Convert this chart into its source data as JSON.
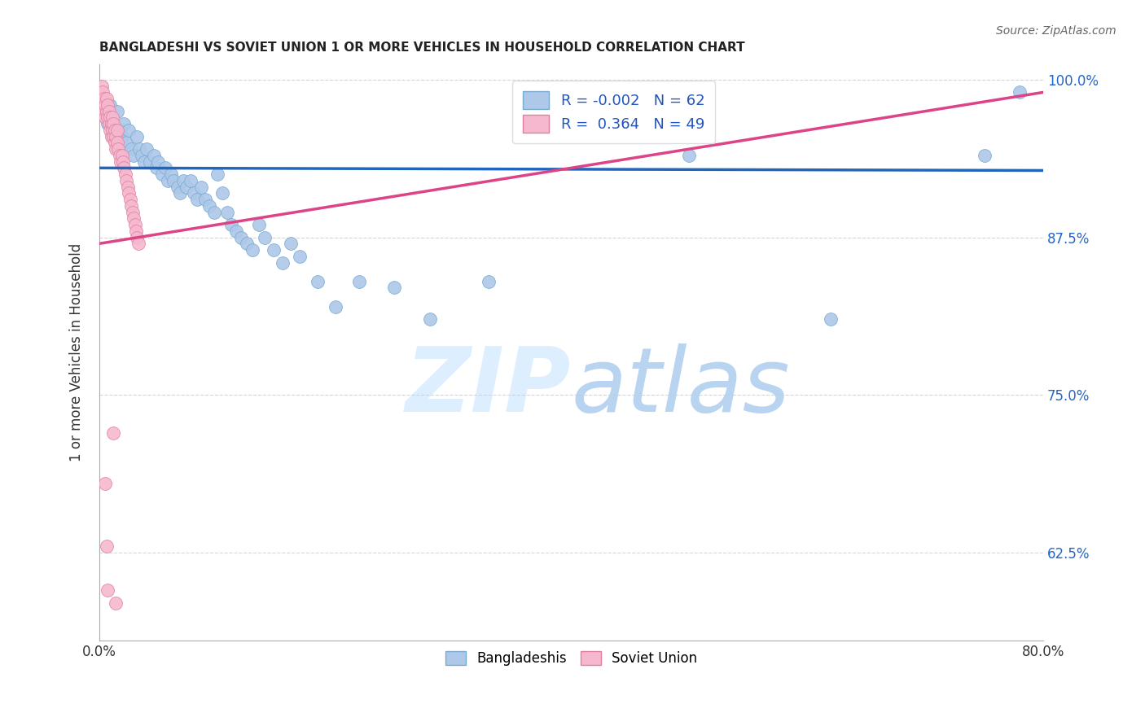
{
  "title": "BANGLADESHI VS SOVIET UNION 1 OR MORE VEHICLES IN HOUSEHOLD CORRELATION CHART",
  "source": "Source: ZipAtlas.com",
  "ylabel": "1 or more Vehicles in Household",
  "xlim": [
    0.0,
    0.8
  ],
  "ylim": [
    0.555,
    1.012
  ],
  "xticks": [
    0.0,
    0.1,
    0.2,
    0.3,
    0.4,
    0.5,
    0.6,
    0.7,
    0.8
  ],
  "xticklabels": [
    "0.0%",
    "",
    "",
    "",
    "",
    "",
    "",
    "",
    "80.0%"
  ],
  "yticks": [
    0.625,
    0.75,
    0.875,
    1.0
  ],
  "yticklabels": [
    "62.5%",
    "75.0%",
    "87.5%",
    "100.0%"
  ],
  "legend_r_blue": "-0.002",
  "legend_n_blue": "62",
  "legend_r_pink": "0.364",
  "legend_n_pink": "49",
  "blue_color": "#adc8e8",
  "pink_color": "#f5b8ce",
  "trend_blue_color": "#2266bb",
  "trend_pink_color": "#dd4488",
  "watermark_color": "#ddeeff",
  "background_color": "#ffffff",
  "grid_color": "#cccccc",
  "blue_x": [
    0.005,
    0.007,
    0.009,
    0.011,
    0.013,
    0.015,
    0.017,
    0.019,
    0.021,
    0.023,
    0.025,
    0.027,
    0.029,
    0.032,
    0.034,
    0.036,
    0.038,
    0.04,
    0.043,
    0.046,
    0.048,
    0.05,
    0.053,
    0.056,
    0.058,
    0.061,
    0.063,
    0.066,
    0.068,
    0.071,
    0.074,
    0.077,
    0.08,
    0.083,
    0.086,
    0.09,
    0.093,
    0.097,
    0.1,
    0.104,
    0.108,
    0.112,
    0.116,
    0.12,
    0.125,
    0.13,
    0.135,
    0.14,
    0.148,
    0.155,
    0.162,
    0.17,
    0.185,
    0.2,
    0.22,
    0.25,
    0.28,
    0.33,
    0.5,
    0.62,
    0.75,
    0.78
  ],
  "blue_y": [
    0.97,
    0.965,
    0.98,
    0.96,
    0.955,
    0.975,
    0.96,
    0.955,
    0.965,
    0.95,
    0.96,
    0.945,
    0.94,
    0.955,
    0.945,
    0.94,
    0.935,
    0.945,
    0.935,
    0.94,
    0.93,
    0.935,
    0.925,
    0.93,
    0.92,
    0.925,
    0.92,
    0.915,
    0.91,
    0.92,
    0.915,
    0.92,
    0.91,
    0.905,
    0.915,
    0.905,
    0.9,
    0.895,
    0.925,
    0.91,
    0.895,
    0.885,
    0.88,
    0.875,
    0.87,
    0.865,
    0.885,
    0.875,
    0.865,
    0.855,
    0.87,
    0.86,
    0.84,
    0.82,
    0.84,
    0.835,
    0.81,
    0.84,
    0.94,
    0.81,
    0.94,
    0.99
  ],
  "blue_trend_y0": 0.93,
  "blue_trend_y1": 0.928,
  "pink_x": [
    0.002,
    0.003,
    0.004,
    0.004,
    0.005,
    0.005,
    0.006,
    0.006,
    0.007,
    0.007,
    0.008,
    0.008,
    0.009,
    0.009,
    0.01,
    0.01,
    0.011,
    0.011,
    0.012,
    0.012,
    0.013,
    0.013,
    0.014,
    0.014,
    0.015,
    0.015,
    0.016,
    0.017,
    0.018,
    0.019,
    0.02,
    0.021,
    0.022,
    0.023,
    0.024,
    0.025,
    0.026,
    0.027,
    0.028,
    0.029,
    0.03,
    0.031,
    0.032,
    0.033,
    0.005,
    0.006,
    0.007,
    0.012,
    0.014
  ],
  "pink_y": [
    0.995,
    0.99,
    0.985,
    0.975,
    0.98,
    0.97,
    0.985,
    0.975,
    0.98,
    0.97,
    0.975,
    0.965,
    0.97,
    0.96,
    0.965,
    0.955,
    0.97,
    0.96,
    0.965,
    0.955,
    0.96,
    0.95,
    0.955,
    0.945,
    0.96,
    0.95,
    0.945,
    0.94,
    0.935,
    0.94,
    0.935,
    0.93,
    0.925,
    0.92,
    0.915,
    0.91,
    0.905,
    0.9,
    0.895,
    0.89,
    0.885,
    0.88,
    0.875,
    0.87,
    0.68,
    0.63,
    0.595,
    0.72,
    0.585
  ],
  "pink_trend_x0": 0.0,
  "pink_trend_x1": 0.8,
  "pink_trend_y0": 0.87,
  "pink_trend_y1": 0.99
}
